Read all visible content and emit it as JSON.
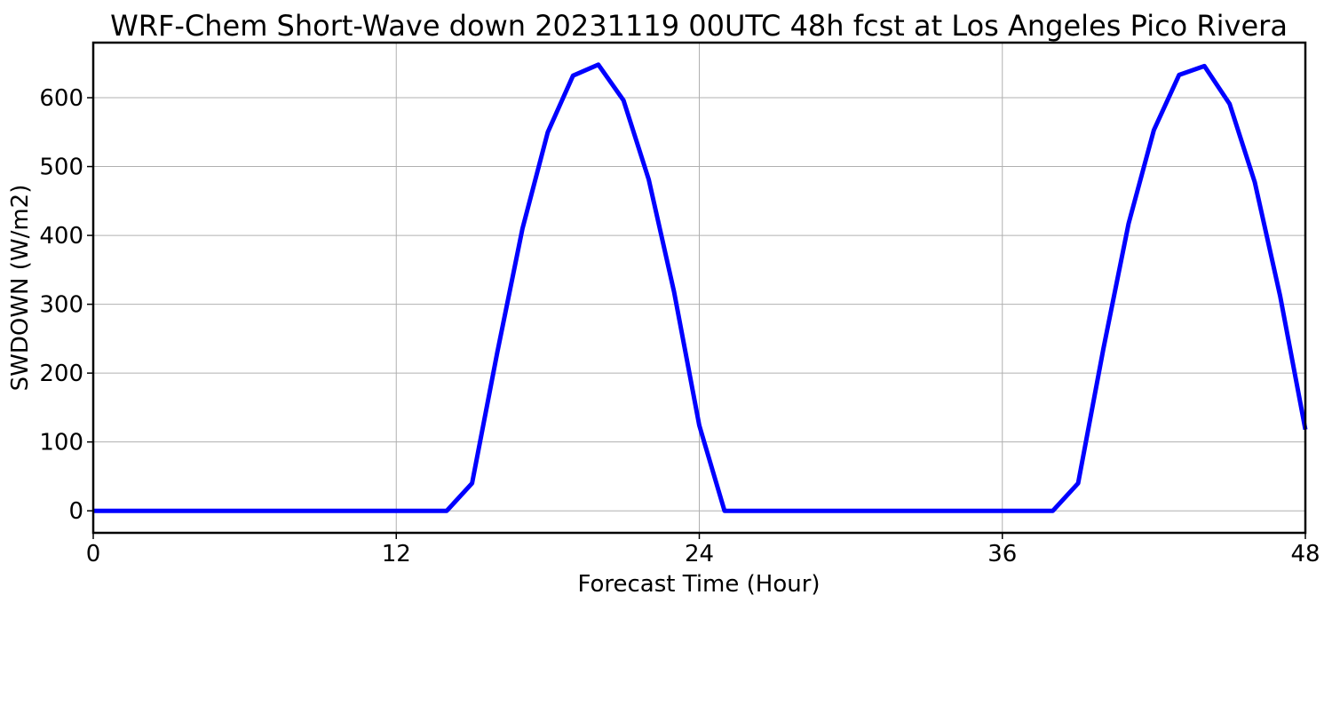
{
  "chart_data": {
    "type": "line",
    "title": "WRF-Chem Short-Wave down  20231119 00UTC 48h fcst at Los Angeles Pico Rivera",
    "xlabel": "Forecast Time (Hour)",
    "ylabel": "SWDOWN  (W/m2)",
    "xlim": [
      0,
      48
    ],
    "ylim": [
      -32,
      680
    ],
    "xticks": [
      0,
      12,
      24,
      36,
      48
    ],
    "yticks": [
      0,
      100,
      200,
      300,
      400,
      500,
      600
    ],
    "grid": true,
    "series": [
      {
        "color": "#0000ff",
        "x": [
          0,
          1,
          2,
          3,
          4,
          5,
          6,
          7,
          8,
          9,
          10,
          11,
          12,
          13,
          14,
          15,
          16,
          17,
          18,
          19,
          20,
          21,
          22,
          23,
          24,
          25,
          26,
          27,
          28,
          29,
          30,
          31,
          32,
          33,
          34,
          35,
          36,
          37,
          38,
          39,
          40,
          41,
          42,
          43,
          44,
          45,
          46,
          47,
          48
        ],
        "y": [
          0,
          0,
          0,
          0,
          0,
          0,
          0,
          0,
          0,
          0,
          0,
          0,
          0,
          0,
          0,
          40,
          230,
          410,
          550,
          632,
          648,
          596,
          481,
          318,
          124,
          0,
          0,
          0,
          0,
          0,
          0,
          0,
          0,
          0,
          0,
          0,
          0,
          0,
          0,
          40,
          235,
          417,
          553,
          633,
          646,
          591,
          477,
          312,
          118
        ]
      }
    ]
  }
}
